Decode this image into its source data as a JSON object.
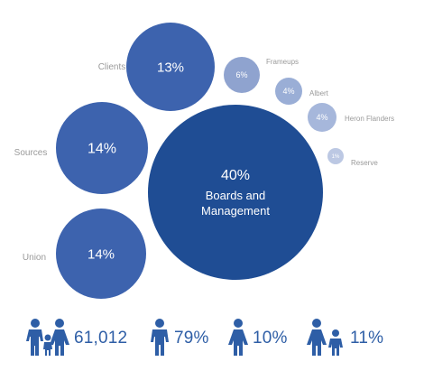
{
  "chart_data": {
    "type": "bubble",
    "title": "",
    "bubbles": [
      {
        "label": "Boards and Management",
        "value_label": "40%",
        "value": 40,
        "color": "#1f4d94"
      },
      {
        "label": "Clients",
        "value_label": "13%",
        "value": 13,
        "color": "#3d63ae"
      },
      {
        "label": "Sources",
        "value_label": "14%",
        "value": 14,
        "color": "#3d63ae"
      },
      {
        "label": "Union",
        "value_label": "14%",
        "value": 14,
        "color": "#3d63ae"
      },
      {
        "label": "Frameups",
        "value_label": "6%",
        "value": 6,
        "color": "#8fa3cf"
      },
      {
        "label": "Albert",
        "value_label": "4%",
        "value": 4,
        "color": "#9aaed6"
      },
      {
        "label": "Heron Flanders",
        "value_label": "4%",
        "value": 4,
        "color": "#a6b7db"
      },
      {
        "label": "Reserve",
        "value_label": "1%",
        "value": 1,
        "color": "#bcc8e3"
      }
    ]
  },
  "stats": [
    {
      "icon": "family-icon",
      "value": "61,012"
    },
    {
      "icon": "male-person-icon",
      "value": "79%"
    },
    {
      "icon": "female-person-icon",
      "value": "10%"
    },
    {
      "icon": "parent-child-icon",
      "value": "11%"
    }
  ],
  "colors": {
    "accent": "#2e5ea6",
    "label": "#9a9a9a"
  }
}
